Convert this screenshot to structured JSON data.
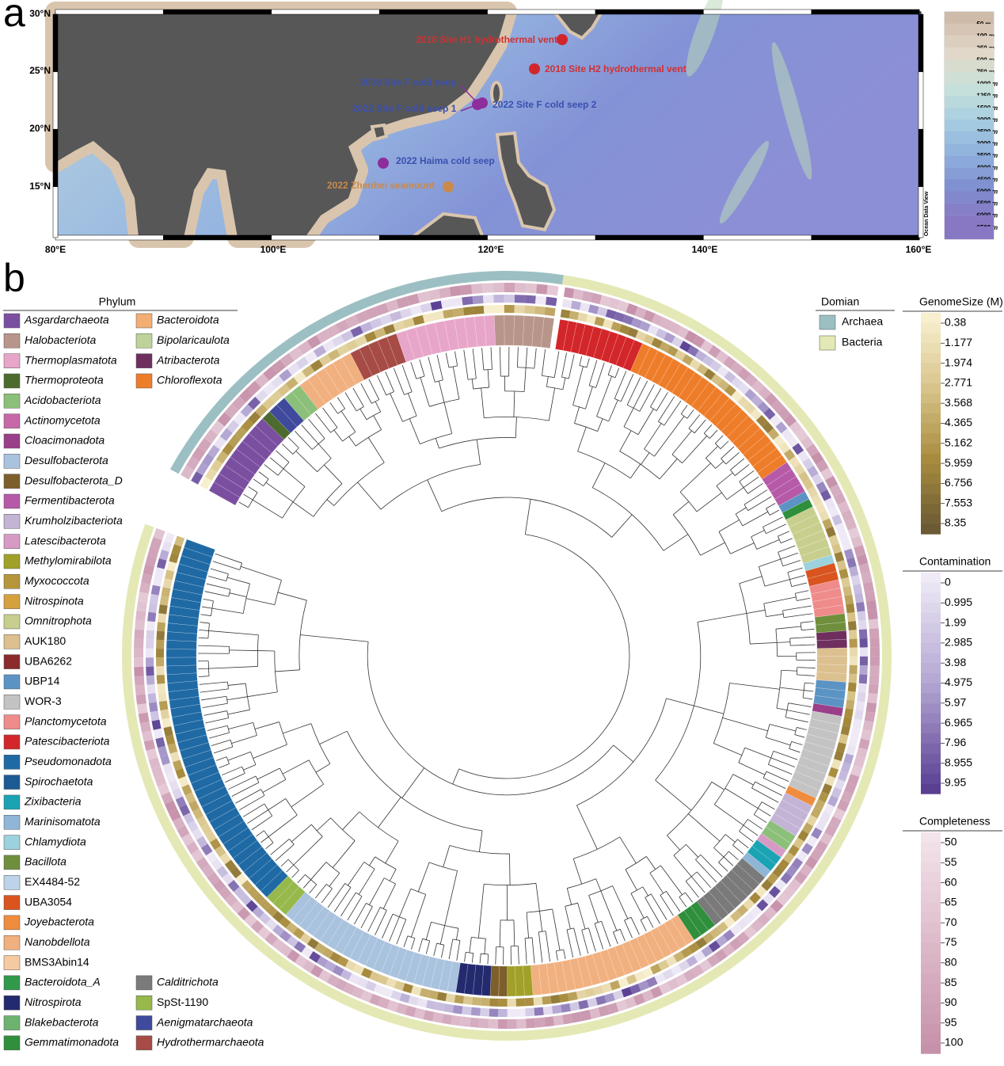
{
  "panel_a": {
    "label": "a",
    "lat_labels": [
      "30°N",
      "25°N",
      "20°N",
      "15°N"
    ],
    "lon_labels": [
      "80°E",
      "100°E",
      "120°E",
      "140°E",
      "160°E"
    ],
    "sites": [
      {
        "label": "2018 Site H1 hydrothermal vent",
        "color": "#d3262a",
        "label_color": "#d03030"
      },
      {
        "label": "2018 Site H2 hydrothermal vent",
        "color": "#d3262a",
        "label_color": "#d03030"
      },
      {
        "label": "2018 Site F cold seep",
        "color": "#8e2d9c",
        "label_color": "#3a4fb0"
      },
      {
        "label": "2022 Site F cold seep 1",
        "color": "#8e2d9c",
        "label_color": "#3a4fb0"
      },
      {
        "label": "2022 Site F cold seep 2",
        "color": "#8e2d9c",
        "label_color": "#3a4fb0"
      },
      {
        "label": "2022 Haima cold seep",
        "color": "#8e2d9c",
        "label_color": "#3a4fb0"
      },
      {
        "label": "2022 Zhenbei seamount",
        "color": "#c98a4b",
        "label_color": "#c98a4b"
      }
    ],
    "depth_legend": [
      "50 m",
      "100 m",
      "250 m",
      "500 m",
      "750 m",
      "1000 m",
      "1250 m",
      "1500 m",
      "2000 m",
      "2500 m",
      "3000 m",
      "3500 m",
      "4000 m",
      "4500 m",
      "5000 m",
      "5500 m",
      "6000 m",
      "6500 m"
    ],
    "credit": "Ocean Data View"
  },
  "panel_b": {
    "label": "b",
    "phylum_legend": {
      "title": "Phylum",
      "items": [
        {
          "name": "Asgardarchaeota",
          "color": "#7b4fa0"
        },
        {
          "name": "Halobacteriota",
          "color": "#b8958a"
        },
        {
          "name": "Thermoplasmatota",
          "color": "#e7a6c9"
        },
        {
          "name": "Thermoproteota",
          "color": "#4d6b2e"
        },
        {
          "name": "Acidobacteriota",
          "color": "#8cc07a"
        },
        {
          "name": "Actinomycetota",
          "color": "#c768a8"
        },
        {
          "name": "Cloacimonadota",
          "color": "#9a3f8a"
        },
        {
          "name": "Desulfobacterota",
          "color": "#a9c2de"
        },
        {
          "name": "Desulfobacterota_D",
          "color": "#7d5f2b"
        },
        {
          "name": "Fermentibacterota",
          "color": "#b65aa8"
        },
        {
          "name": "Krumholzibacteriota",
          "color": "#c3b4d6"
        },
        {
          "name": "Latescibacterota",
          "color": "#d69ac4"
        },
        {
          "name": "Methylomirabilota",
          "color": "#a1a12a"
        },
        {
          "name": "Myxococcota",
          "color": "#b5963a"
        },
        {
          "name": "Nitrospinota",
          "color": "#d4a13e"
        },
        {
          "name": "Omnitrophota",
          "color": "#c8cf8e"
        },
        {
          "name": "AUK180",
          "color": "#dcc08f"
        },
        {
          "name": "UBA6262",
          "color": "#8b2b2b"
        },
        {
          "name": "UBP14",
          "color": "#5b93c4"
        },
        {
          "name": "WOR-3",
          "color": "#c3c3c3"
        },
        {
          "name": "Planctomycetota",
          "color": "#ef8b8b"
        },
        {
          "name": "Patescibacteriota",
          "color": "#d3262a"
        },
        {
          "name": "Pseudomonadota",
          "color": "#1f6aa5"
        },
        {
          "name": "Spirochaetota",
          "color": "#1c5a94"
        },
        {
          "name": "Zixibacteria",
          "color": "#1aa3b3"
        },
        {
          "name": "Marinisomatota",
          "color": "#8fb6d6"
        },
        {
          "name": "Chlamydiota",
          "color": "#9cd1de"
        },
        {
          "name": "Bacillota",
          "color": "#6f8f3c"
        },
        {
          "name": "EX4484-52",
          "color": "#bcd3ea"
        },
        {
          "name": "UBA3054",
          "color": "#d9541e"
        },
        {
          "name": "Joyebacterota",
          "color": "#ef8c3e"
        },
        {
          "name": "Nanobdellota",
          "color": "#f1b07f"
        },
        {
          "name": "BMS3Abin14",
          "color": "#f6caa0"
        },
        {
          "name": "Bacteroidota_A",
          "color": "#2f9a4a"
        },
        {
          "name": "Nitrospirota",
          "color": "#232a6e"
        },
        {
          "name": "Blakebacterota",
          "color": "#6bb36f"
        },
        {
          "name": "Gemmatimonadota",
          "color": "#2f8f3c"
        },
        {
          "name": "Bacteroidota",
          "color": "#f3ae74"
        },
        {
          "name": "Bipolaricaulota",
          "color": "#bed39a"
        },
        {
          "name": "Atribacterota",
          "color": "#6e2f5e"
        },
        {
          "name": "Chloroflexota",
          "color": "#ee7d2a"
        },
        {
          "name": "Calditrichota",
          "color": "#7a7a7a"
        },
        {
          "name": "SpSt-1190",
          "color": "#97b84a"
        },
        {
          "name": "Aenigmatarchaeota",
          "color": "#3f4a9c"
        },
        {
          "name": "Hydrothermarchaeota",
          "color": "#a64b45"
        }
      ]
    },
    "domain_legend": {
      "title": "Domian",
      "items": [
        {
          "name": "Archaea",
          "color": "#9cbfc3"
        },
        {
          "name": "Bacteria",
          "color": "#e4e8b4"
        }
      ]
    },
    "genome_size": {
      "title": "GenomeSize (M)",
      "labels": [
        0.38,
        1.177,
        1.974,
        2.771,
        3.568,
        4.365,
        5.162,
        5.959,
        6.756,
        7.553,
        8.35
      ]
    },
    "contamination": {
      "title": "Contamination",
      "labels": [
        0,
        0.995,
        1.99,
        2.985,
        3.98,
        4.975,
        5.97,
        6.965,
        7.96,
        8.955,
        9.95
      ]
    },
    "completeness": {
      "title": "Completeness",
      "labels": [
        50,
        55,
        60,
        65,
        70,
        75,
        80,
        85,
        90,
        95,
        100
      ]
    }
  }
}
